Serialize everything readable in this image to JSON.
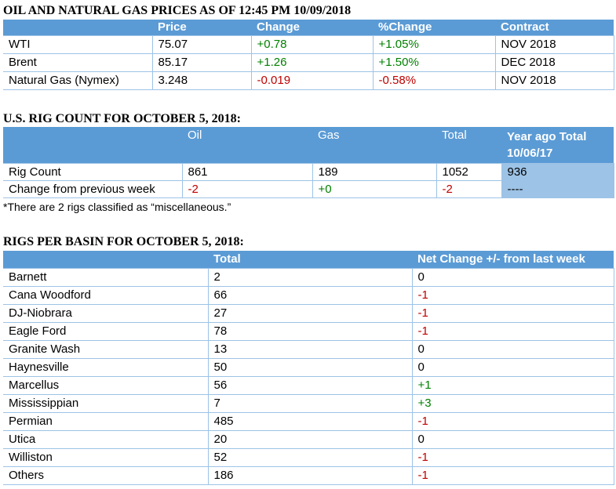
{
  "prices": {
    "title": "OIL AND NATURAL GAS PRICES AS OF 12:45 PM 10/09/2018",
    "headers": [
      "",
      "Price",
      "Change",
      "%Change",
      "Contract"
    ],
    "rows": [
      {
        "name": "WTI",
        "price": "75.07",
        "change": "+0.78",
        "pct": "+1.05%",
        "contract": "NOV 2018"
      },
      {
        "name": "Brent",
        "price": "85.17",
        "change": "+1.26",
        "pct": "+1.50%",
        "contract": "DEC 2018"
      },
      {
        "name": "Natural Gas (Nymex)",
        "price": "3.248",
        "change": "-0.019",
        "pct": "-0.58%",
        "contract": "NOV 2018"
      }
    ]
  },
  "rig_count": {
    "title": "U.S. RIG COUNT FOR OCTOBER 5, 2018:",
    "headers": {
      "oil": "Oil",
      "gas": "Gas",
      "total": "Total",
      "year_ago_line1": "Year ago Total",
      "year_ago_line2": "10/06/17"
    },
    "rows": [
      {
        "label": "Rig Count",
        "oil": "861",
        "gas": "189",
        "total": "1052",
        "year_ago": "936"
      },
      {
        "label": "Change from previous week",
        "oil": "-2",
        "gas": "+0",
        "total": "-2",
        "year_ago": "----"
      }
    ],
    "note": "*There are 2 rigs classified as “miscellaneous.”"
  },
  "basins": {
    "title": "RIGS PER BASIN FOR OCTOBER 5, 2018:",
    "headers": {
      "total": "Total",
      "change": "Net Change +/- from last week"
    },
    "rows": [
      {
        "name": "Barnett",
        "total": "2",
        "change": "0"
      },
      {
        "name": "Cana Woodford",
        "total": "66",
        "change": "-1"
      },
      {
        "name": "DJ-Niobrara",
        "total": "27",
        "change": "-1"
      },
      {
        "name": "Eagle Ford",
        "total": "78",
        "change": "-1"
      },
      {
        "name": "Granite Wash",
        "total": "13",
        "change": "0"
      },
      {
        "name": "Haynesville",
        "total": "50",
        "change": "0"
      },
      {
        "name": "Marcellus",
        "total": "56",
        "change": "+1"
      },
      {
        "name": "Mississippian",
        "total": "7",
        "change": "+3"
      },
      {
        "name": "Permian",
        "total": "485",
        "change": "-1"
      },
      {
        "name": "Utica",
        "total": "20",
        "change": "0"
      },
      {
        "name": "Williston",
        "total": "52",
        "change": "-1"
      },
      {
        "name": "Others",
        "total": "186",
        "change": "-1"
      }
    ]
  },
  "colors": {
    "header_blue": "#5b9bd5",
    "light_blue": "#9dc3e6",
    "positive": "#008000",
    "negative": "#c00000"
  }
}
